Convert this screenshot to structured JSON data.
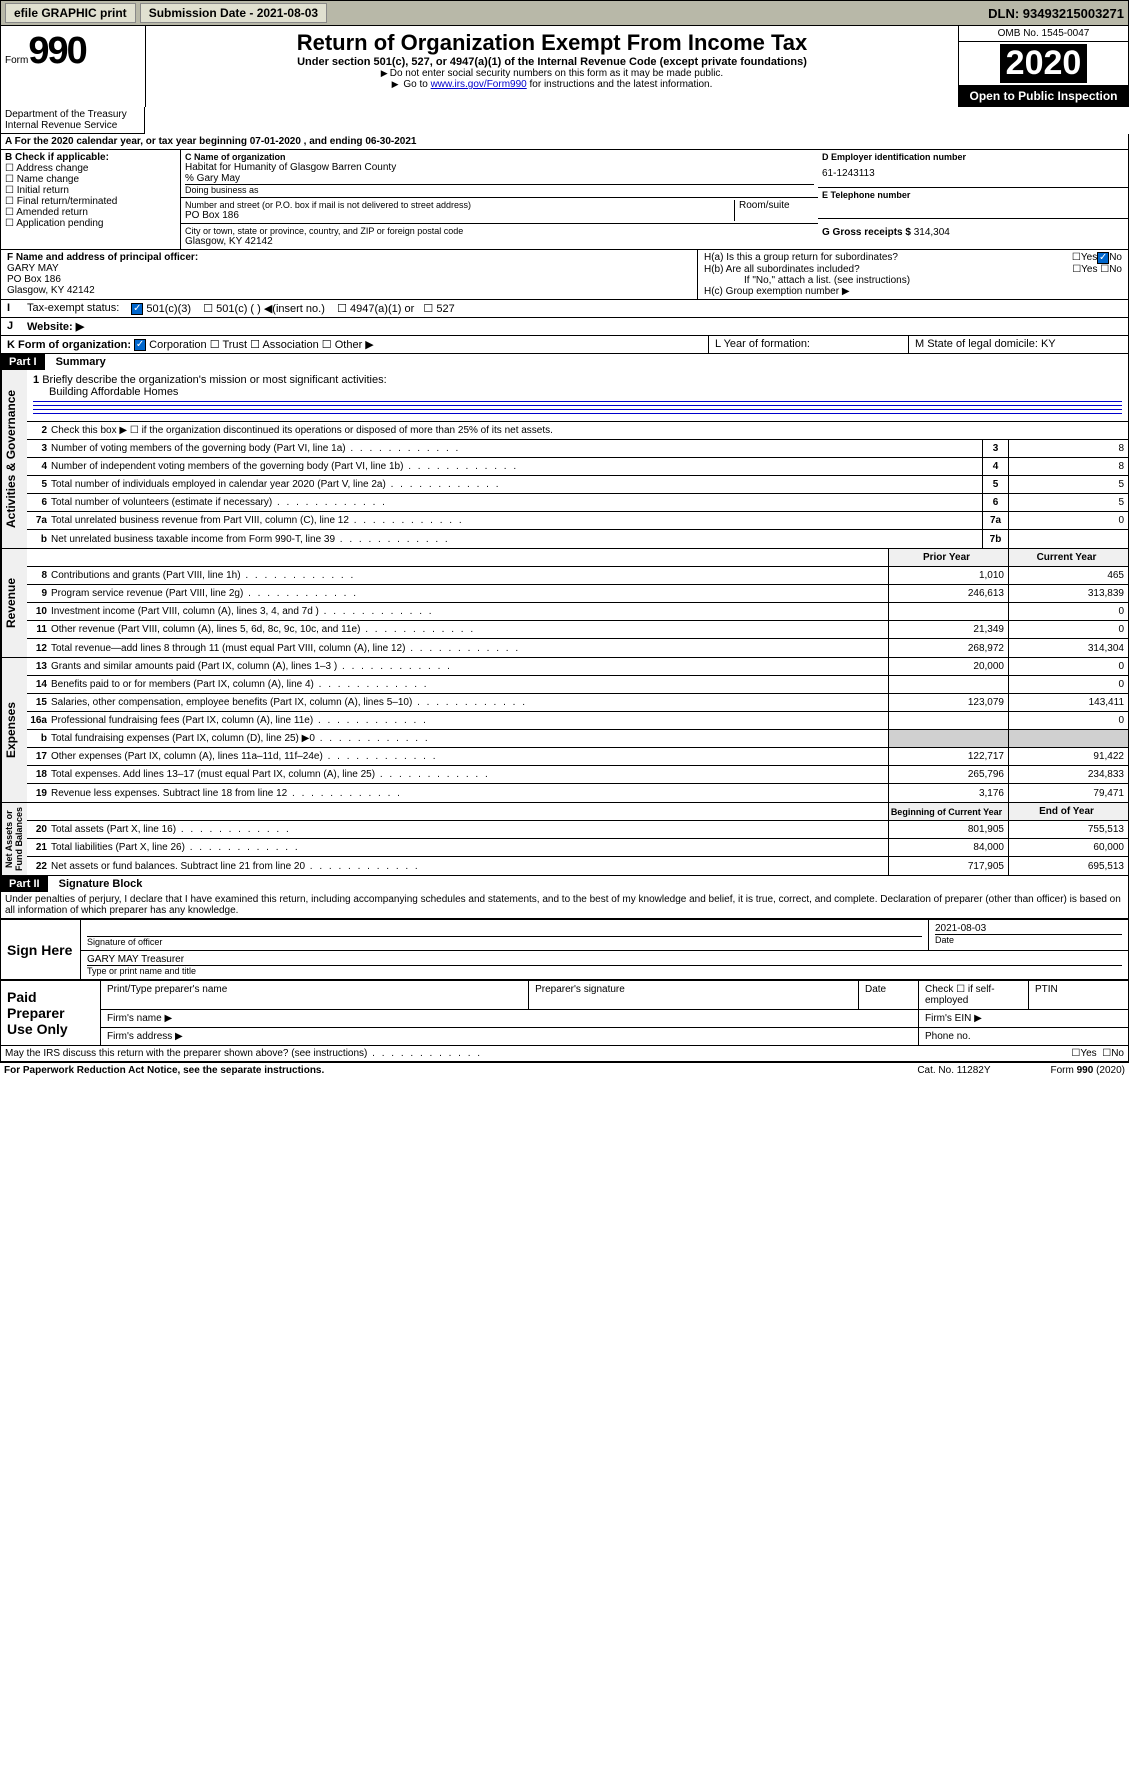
{
  "topbar": {
    "efile": "efile GRAPHIC print",
    "submission": "Submission Date - 2021-08-03",
    "dln": "DLN: 93493215003271"
  },
  "header": {
    "form_prefix": "Form",
    "form_num": "990",
    "title": "Return of Organization Exempt From Income Tax",
    "subtitle": "Under section 501(c), 527, or 4947(a)(1) of the Internal Revenue Code (except private foundations)",
    "note1": "Do not enter social security numbers on this form as it may be made public.",
    "note2_pre": "Go to ",
    "note2_link": "www.irs.gov/Form990",
    "note2_post": " for instructions and the latest information.",
    "omb": "OMB No. 1545-0047",
    "year": "2020",
    "open": "Open to Public Inspection",
    "dept": "Department of the Treasury\nInternal Revenue Service"
  },
  "line_a": "A For the 2020 calendar year, or tax year beginning 07-01-2020    , and ending 06-30-2021",
  "box_b": {
    "title": "B Check if applicable:",
    "items": [
      "Address change",
      "Name change",
      "Initial return",
      "Final return/terminated",
      "Amended return",
      "Application pending"
    ]
  },
  "box_c": {
    "label": "C Name of organization",
    "name": "Habitat for Humanity of Glasgow Barren County",
    "care": "% Gary May",
    "dba_label": "Doing business as",
    "addr_label": "Number and street (or P.O. box if mail is not delivered to street address)",
    "room_label": "Room/suite",
    "addr": "PO Box 186",
    "city_label": "City or town, state or province, country, and ZIP or foreign postal code",
    "city": "Glasgow, KY  42142"
  },
  "box_d": {
    "label": "D Employer identification number",
    "val": "61-1243113"
  },
  "box_e": {
    "label": "E Telephone number"
  },
  "box_g": {
    "label": "G Gross receipts $",
    "val": "314,304"
  },
  "box_f": {
    "label": "F  Name and address of principal officer:",
    "name": "GARY MAY",
    "addr1": "PO Box 186",
    "addr2": "Glasgow, KY  42142"
  },
  "box_h": {
    "a": "H(a)  Is this a group return for subordinates?",
    "b": "H(b)  Are all subordinates included?",
    "note": "If \"No,\" attach a list. (see instructions)",
    "c": "H(c)  Group exemption number ▶"
  },
  "line_i": {
    "label": "Tax-exempt status:",
    "opts": [
      "501(c)(3)",
      "501(c) (  ) ◀(insert no.)",
      "4947(a)(1) or",
      "527"
    ]
  },
  "line_j": "Website: ▶",
  "line_k": "K Form of organization:",
  "line_k_opts": [
    "Corporation",
    "Trust",
    "Association",
    "Other ▶"
  ],
  "line_l": "L Year of formation:",
  "line_m": "M State of legal domicile: KY",
  "part1": {
    "title": "Part I",
    "name": "Summary",
    "l1_label": "Briefly describe the organization's mission or most significant activities:",
    "l1_val": "Building Affordable Homes",
    "l2": "Check this box ▶ ☐  if the organization discontinued its operations or disposed of more than 25% of its net assets.",
    "rows_gov": [
      {
        "n": "3",
        "t": "Number of voting members of the governing body (Part VI, line 1a)",
        "b": "3",
        "v": "8"
      },
      {
        "n": "4",
        "t": "Number of independent voting members of the governing body (Part VI, line 1b)",
        "b": "4",
        "v": "8"
      },
      {
        "n": "5",
        "t": "Total number of individuals employed in calendar year 2020 (Part V, line 2a)",
        "b": "5",
        "v": "5"
      },
      {
        "n": "6",
        "t": "Total number of volunteers (estimate if necessary)",
        "b": "6",
        "v": "5"
      },
      {
        "n": "7a",
        "t": "Total unrelated business revenue from Part VIII, column (C), line 12",
        "b": "7a",
        "v": "0"
      },
      {
        "n": "b",
        "t": "Net unrelated business taxable income from Form 990-T, line 39",
        "b": "7b",
        "v": ""
      }
    ],
    "col_hdr": {
      "prior": "Prior Year",
      "current": "Current Year"
    },
    "rows_rev": [
      {
        "n": "8",
        "t": "Contributions and grants (Part VIII, line 1h)",
        "p": "1,010",
        "c": "465"
      },
      {
        "n": "9",
        "t": "Program service revenue (Part VIII, line 2g)",
        "p": "246,613",
        "c": "313,839"
      },
      {
        "n": "10",
        "t": "Investment income (Part VIII, column (A), lines 3, 4, and 7d )",
        "p": "",
        "c": "0"
      },
      {
        "n": "11",
        "t": "Other revenue (Part VIII, column (A), lines 5, 6d, 8c, 9c, 10c, and 11e)",
        "p": "21,349",
        "c": "0"
      },
      {
        "n": "12",
        "t": "Total revenue—add lines 8 through 11 (must equal Part VIII, column (A), line 12)",
        "p": "268,972",
        "c": "314,304"
      }
    ],
    "rows_exp": [
      {
        "n": "13",
        "t": "Grants and similar amounts paid (Part IX, column (A), lines 1–3 )",
        "p": "20,000",
        "c": "0"
      },
      {
        "n": "14",
        "t": "Benefits paid to or for members (Part IX, column (A), line 4)",
        "p": "",
        "c": "0"
      },
      {
        "n": "15",
        "t": "Salaries, other compensation, employee benefits (Part IX, column (A), lines 5–10)",
        "p": "123,079",
        "c": "143,411"
      },
      {
        "n": "16a",
        "t": "Professional fundraising fees (Part IX, column (A), line 11e)",
        "p": "",
        "c": "0"
      },
      {
        "n": "b",
        "t": "Total fundraising expenses (Part IX, column (D), line 25) ▶0",
        "p": "GRAY",
        "c": "GRAY"
      },
      {
        "n": "17",
        "t": "Other expenses (Part IX, column (A), lines 11a–11d, 11f–24e)",
        "p": "122,717",
        "c": "91,422"
      },
      {
        "n": "18",
        "t": "Total expenses. Add lines 13–17 (must equal Part IX, column (A), line 25)",
        "p": "265,796",
        "c": "234,833"
      },
      {
        "n": "19",
        "t": "Revenue less expenses. Subtract line 18 from line 12",
        "p": "3,176",
        "c": "79,471"
      }
    ],
    "col_hdr2": {
      "prior": "Beginning of Current Year",
      "current": "End of Year"
    },
    "rows_net": [
      {
        "n": "20",
        "t": "Total assets (Part X, line 16)",
        "p": "801,905",
        "c": "755,513"
      },
      {
        "n": "21",
        "t": "Total liabilities (Part X, line 26)",
        "p": "84,000",
        "c": "60,000"
      },
      {
        "n": "22",
        "t": "Net assets or fund balances. Subtract line 21 from line 20",
        "p": "717,905",
        "c": "695,513"
      }
    ]
  },
  "part2": {
    "title": "Part II",
    "name": "Signature Block",
    "decl": "Under penalties of perjury, I declare that I have examined this return, including accompanying schedules and statements, and to the best of my knowledge and belief, it is true, correct, and complete. Declaration of preparer (other than officer) is based on all information of which preparer has any knowledge.",
    "sign_here": "Sign Here",
    "sig_officer": "Signature of officer",
    "date": "2021-08-03",
    "date_label": "Date",
    "name_title": "GARY MAY Treasurer",
    "name_label": "Type or print name and title",
    "paid": "Paid Preparer Use Only",
    "prep_name": "Print/Type preparer's name",
    "prep_sig": "Preparer's signature",
    "prep_date": "Date",
    "check_se": "Check ☐ if self-employed",
    "ptin": "PTIN",
    "firm_name": "Firm's name  ▶",
    "firm_ein": "Firm's EIN ▶",
    "firm_addr": "Firm's address ▶",
    "phone": "Phone no.",
    "discuss": "May the IRS discuss this return with the preparer shown above? (see instructions)",
    "yes": "Yes",
    "no": "No"
  },
  "footer": {
    "left": "For Paperwork Reduction Act Notice, see the separate instructions.",
    "mid": "Cat. No. 11282Y",
    "right": "Form 990 (2020)"
  }
}
